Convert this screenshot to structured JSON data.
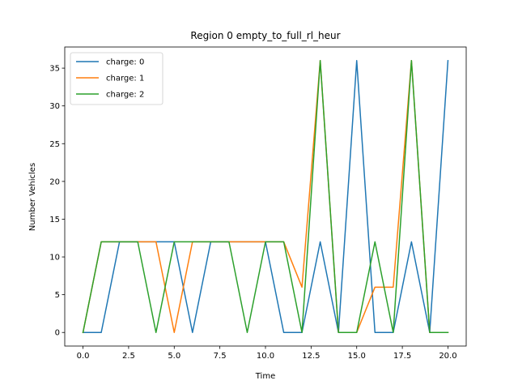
{
  "chart_data": {
    "type": "line",
    "title": "Region 0 empty_to_full_rl_heur",
    "xlabel": "Time",
    "ylabel": "Number Vehicles",
    "xlim": [
      -1.0,
      21.0
    ],
    "ylim": [
      -1.8,
      37.8
    ],
    "xticks": [
      0.0,
      2.5,
      5.0,
      7.5,
      10.0,
      12.5,
      15.0,
      17.5,
      20.0
    ],
    "xtick_labels": [
      "0.0",
      "2.5",
      "5.0",
      "7.5",
      "10.0",
      "12.5",
      "15.0",
      "17.5",
      "20.0"
    ],
    "yticks": [
      0,
      5,
      10,
      15,
      20,
      25,
      30,
      35
    ],
    "ytick_labels": [
      "0",
      "5",
      "10",
      "15",
      "20",
      "25",
      "30",
      "35"
    ],
    "grid": false,
    "legend": "top-left",
    "x": [
      0,
      1,
      2,
      3,
      4,
      5,
      6,
      7,
      8,
      9,
      10,
      11,
      12,
      13,
      14,
      15,
      16,
      17,
      18,
      19,
      20
    ],
    "series": [
      {
        "name": "charge: 0",
        "color": "#1f77b4",
        "values": [
          0,
          0,
          12,
          12,
          12,
          12,
          0,
          12,
          12,
          12,
          12,
          0,
          0,
          12,
          0,
          36,
          0,
          0,
          12,
          0,
          36
        ]
      },
      {
        "name": "charge: 1",
        "color": "#ff7f0e",
        "values": [
          0,
          12,
          12,
          12,
          12,
          0,
          12,
          12,
          12,
          12,
          12,
          12,
          6,
          36,
          0,
          0,
          6,
          6,
          36,
          0,
          0
        ]
      },
      {
        "name": "charge: 2",
        "color": "#2ca02c",
        "values": [
          0,
          12,
          12,
          12,
          0,
          12,
          12,
          12,
          12,
          0,
          12,
          12,
          0,
          36,
          0,
          0,
          12,
          0,
          36,
          0,
          0
        ]
      }
    ]
  }
}
